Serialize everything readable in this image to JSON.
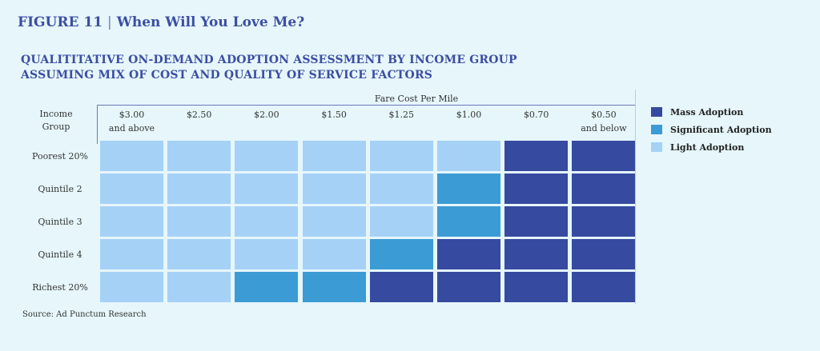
{
  "figure": {
    "label": "FIGURE 11",
    "separator": "|",
    "title": "When Will You Love Me?"
  },
  "chart_data": {
    "type": "heatmap",
    "title": "QUALITITATIVE ON-DEMAND ADOPTION ASSESSMENT BY INCOME GROUP",
    "subtitle": "ASSUMING MIX OF COST AND QUALITY OF SERVICE FACTORS",
    "xlabel": "Fare Cost Per Mile",
    "ylabel_lines": [
      "Income",
      "Group"
    ],
    "columns": [
      {
        "line1": "$3.00",
        "line2": "and above"
      },
      {
        "line1": "$2.50",
        "line2": ""
      },
      {
        "line1": "$2.00",
        "line2": ""
      },
      {
        "line1": "$1.50",
        "line2": ""
      },
      {
        "line1": "$1.25",
        "line2": ""
      },
      {
        "line1": "$1.00",
        "line2": ""
      },
      {
        "line1": "$0.70",
        "line2": ""
      },
      {
        "line1": "$0.50",
        "line2": "and below"
      }
    ],
    "rows": [
      "Poorest 20%",
      "Quintile 2",
      "Quintile 3",
      "Quintile 4",
      "Richest 20%"
    ],
    "levels": [
      {
        "key": "mass",
        "label": "Mass Adoption",
        "color": "#364aa0"
      },
      {
        "key": "significant",
        "label": "Significant Adoption",
        "color": "#3b9bd4"
      },
      {
        "key": "light",
        "label": "Light Adoption",
        "color": "#a6d1f7"
      }
    ],
    "values": [
      [
        "light",
        "light",
        "light",
        "light",
        "light",
        "light",
        "mass",
        "mass"
      ],
      [
        "light",
        "light",
        "light",
        "light",
        "light",
        "significant",
        "mass",
        "mass"
      ],
      [
        "light",
        "light",
        "light",
        "light",
        "light",
        "significant",
        "mass",
        "mass"
      ],
      [
        "light",
        "light",
        "light",
        "light",
        "significant",
        "mass",
        "mass",
        "mass"
      ],
      [
        "light",
        "light",
        "significant",
        "significant",
        "mass",
        "mass",
        "mass",
        "mass"
      ]
    ],
    "legend_position": "right"
  },
  "source": "Source: Ad Punctum Research"
}
